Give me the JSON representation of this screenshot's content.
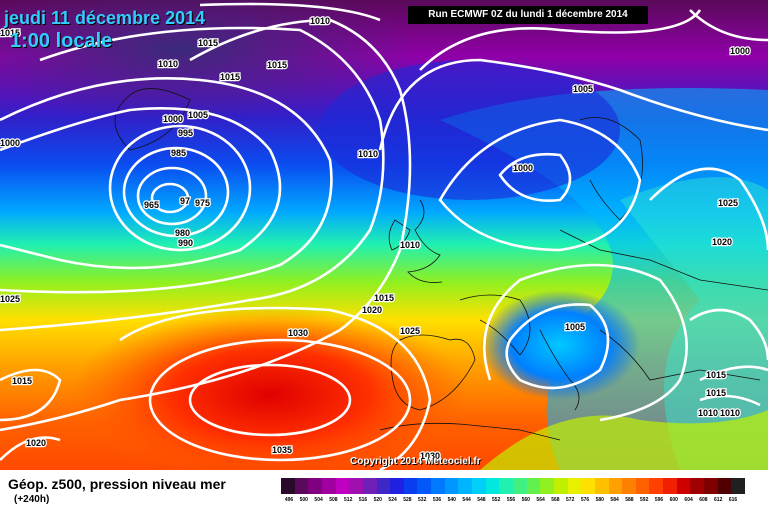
{
  "header": {
    "date": "jeudi 11 décembre 2014",
    "time": "1:00 locale",
    "run_info": "Run ECMWF 0Z du lundi 1 décembre 2014"
  },
  "copyright": "Copyright 2014 Meteociel.fr",
  "footer": {
    "title": "Géop. z500, pression niveau mer",
    "subtitle": "(+240h)"
  },
  "isobar_labels": [
    "1010",
    "1015",
    "1015",
    "1010",
    "1015",
    "1015",
    "1000",
    "1005",
    "995",
    "985",
    "965",
    "975",
    "97",
    "980",
    "990",
    "1010",
    "1010",
    "1015",
    "1020",
    "1025",
    "1030",
    "1035",
    "1030",
    "1015",
    "1020",
    "1025",
    "1005",
    "1000",
    "1000",
    "1025",
    "1020",
    "1005",
    "1015",
    "1015",
    "1010",
    "1010"
  ],
  "scale": {
    "colors": [
      "#2a0a2a",
      "#5a0a5a",
      "#800080",
      "#a000a0",
      "#c000c0",
      "#a010b0",
      "#7020b8",
      "#4028c8",
      "#2020e0",
      "#0a3cf0",
      "#0058f8",
      "#0078ff",
      "#0098ff",
      "#00b4ff",
      "#00d0f8",
      "#00e8e0",
      "#20f0b0",
      "#40f080",
      "#60f050",
      "#90f020",
      "#c0f000",
      "#e8f000",
      "#ffe000",
      "#ffc000",
      "#ffa000",
      "#ff8000",
      "#ff6000",
      "#ff4000",
      "#f02000",
      "#d00000",
      "#a00000",
      "#800000",
      "#500000",
      "#202020"
    ],
    "ticks": [
      "496",
      "500",
      "504",
      "508",
      "512",
      "516",
      "520",
      "524",
      "528",
      "532",
      "536",
      "540",
      "544",
      "548",
      "552",
      "556",
      "560",
      "564",
      "568",
      "572",
      "576",
      "580",
      "584",
      "588",
      "592",
      "596",
      "600",
      "604",
      "608",
      "612",
      "616"
    ]
  }
}
